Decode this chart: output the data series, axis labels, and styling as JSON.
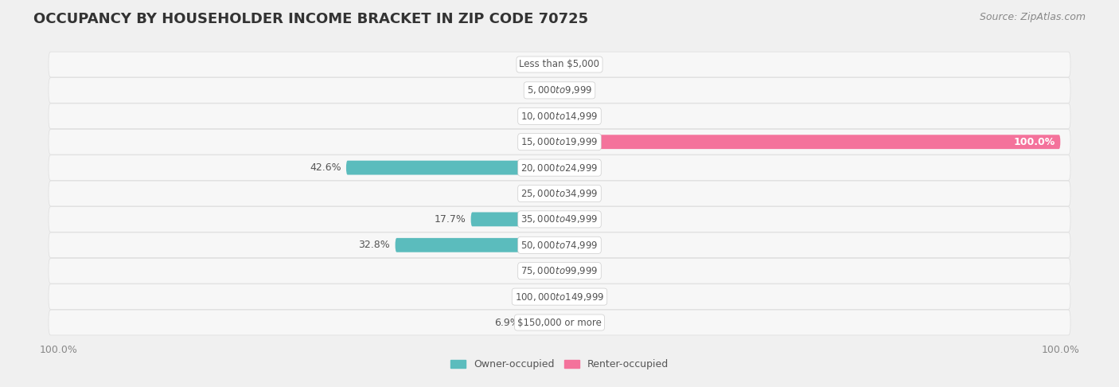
{
  "title": "OCCUPANCY BY HOUSEHOLDER INCOME BRACKET IN ZIP CODE 70725",
  "source": "Source: ZipAtlas.com",
  "categories": [
    "Less than $5,000",
    "$5,000 to $9,999",
    "$10,000 to $14,999",
    "$15,000 to $19,999",
    "$20,000 to $24,999",
    "$25,000 to $34,999",
    "$35,000 to $49,999",
    "$50,000 to $74,999",
    "$75,000 to $99,999",
    "$100,000 to $149,999",
    "$150,000 or more"
  ],
  "owner_occupied": [
    0.0,
    0.0,
    0.0,
    0.0,
    42.6,
    0.0,
    17.7,
    32.8,
    0.0,
    0.0,
    6.9
  ],
  "renter_occupied": [
    0.0,
    0.0,
    0.0,
    100.0,
    0.0,
    0.0,
    0.0,
    0.0,
    0.0,
    0.0,
    0.0
  ],
  "owner_color": "#5bbcbd",
  "renter_color": "#f4729b",
  "bg_color": "#f0f0f0",
  "row_bg_color": "#ffffff",
  "row_alt_bg_color": "#f5f5f5",
  "label_color": "#555555",
  "title_color": "#333333",
  "source_color": "#888888",
  "axis_label_color": "#888888",
  "xlim": [
    -100,
    100
  ],
  "bar_height": 0.55,
  "title_fontsize": 13,
  "label_fontsize": 9,
  "axis_fontsize": 9,
  "source_fontsize": 9
}
